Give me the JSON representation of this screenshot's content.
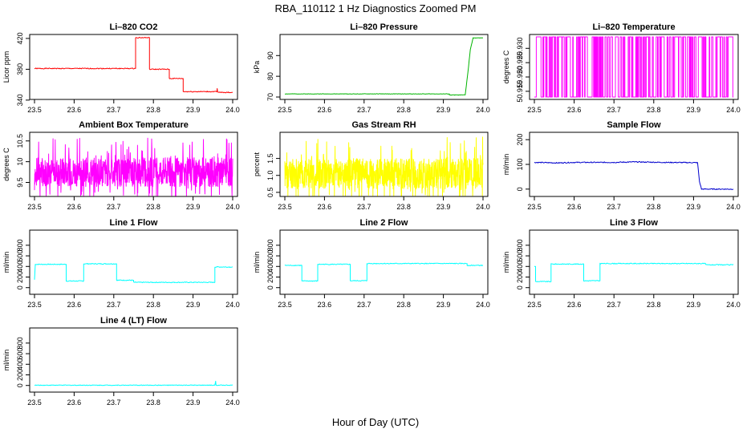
{
  "figure": {
    "title": "RBA_110112  1 Hz Diagnostics Zoomed PM",
    "xlabel": "Hour of Day (UTC)"
  },
  "chart_data": [
    {
      "type": "line",
      "title": "Li–820 CO2",
      "ylabel": "Licor ppm",
      "color": "#ff0000",
      "xlim": [
        23.5,
        24.0
      ],
      "xticks": [
        23.5,
        23.6,
        23.7,
        23.8,
        23.9,
        24.0
      ],
      "xtick_labels": [
        "23.5",
        "23.6",
        "23.7",
        "23.8",
        "23.9",
        "24.0"
      ],
      "yticks": [
        420,
        380,
        340
      ],
      "ytick_labels": [
        "420",
        "380",
        "340"
      ],
      "ylim": [
        344,
        422
      ],
      "series": [
        {
          "x": [
            23.5,
            23.755,
            23.755,
            23.79,
            23.79,
            23.84,
            23.84,
            23.875,
            23.875,
            23.96,
            23.961,
            23.962,
            24.0
          ],
          "y": [
            381,
            381,
            421,
            421,
            380,
            380,
            368,
            368,
            351,
            351,
            355,
            350,
            350
          ]
        }
      ],
      "noise": 0.6
    },
    {
      "type": "line",
      "title": "Li–820 Pressure",
      "ylabel": "kPa",
      "color": "#00b400",
      "xlim": [
        23.5,
        24.0
      ],
      "xticks": [
        23.5,
        23.6,
        23.7,
        23.8,
        23.9,
        24.0
      ],
      "xtick_labels": [
        "23.5",
        "23.6",
        "23.7",
        "23.8",
        "23.9",
        "24.0"
      ],
      "yticks": [
        70,
        80,
        90
      ],
      "ytick_labels": [
        "70",
        "80",
        "90"
      ],
      "ylim": [
        70,
        99
      ],
      "series": [
        {
          "x": [
            23.5,
            23.915,
            23.915,
            23.955,
            23.962,
            23.968,
            23.975,
            24.0
          ],
          "y": [
            71.5,
            71.5,
            71.0,
            71.0,
            82,
            93,
            98.5,
            98.5
          ]
        }
      ],
      "noise": 0.1
    },
    {
      "type": "line",
      "title": "Li–820 Temperature",
      "ylabel": "degrees C",
      "color": "#ff00ff",
      "xlim": [
        23.5,
        24.0
      ],
      "xticks": [
        23.5,
        23.6,
        23.7,
        23.8,
        23.9,
        24.0
      ],
      "xtick_labels": [
        "23.5",
        "23.6",
        "23.7",
        "23.8",
        "23.9",
        "24.0"
      ],
      "yticks": [
        50.915,
        50.92,
        50.925,
        50.93
      ],
      "ytick_labels": [
        "50.915",
        "50.920",
        "50.925",
        "50.930"
      ],
      "ylim": [
        50.913,
        50.934
      ],
      "series": [
        {
          "toggle": [
            50.913,
            50.934
          ],
          "seed": 3
        }
      ]
    },
    {
      "type": "line",
      "title": "Ambient Box Temperature",
      "ylabel": "degrees C",
      "color": "#ff00ff",
      "xlim": [
        23.5,
        24.0
      ],
      "xticks": [
        23.5,
        23.6,
        23.7,
        23.8,
        23.9,
        24.0
      ],
      "xtick_labels": [
        "23.5",
        "23.6",
        "23.7",
        "23.8",
        "23.9",
        "24.0"
      ],
      "yticks": [
        9.5,
        10.0,
        10.5
      ],
      "ytick_labels": [
        "9.5",
        "10",
        "10.5"
      ],
      "ylim": [
        9.22,
        10.65
      ],
      "series": [
        {
          "noise_band": {
            "center": 9.75,
            "half": 0.35,
            "spike": 0.85
          },
          "seed": 7
        }
      ]
    },
    {
      "type": "line",
      "title": "Gas Stream RH",
      "ylabel": "percent",
      "color": "#ffff00",
      "xlim": [
        23.5,
        24.0
      ],
      "xticks": [
        23.5,
        23.6,
        23.7,
        23.8,
        23.9,
        24.0
      ],
      "xtick_labels": [
        "23.5",
        "23.6",
        "23.7",
        "23.8",
        "23.9",
        "24.0"
      ],
      "yticks": [
        0.5,
        1.0,
        1.5
      ],
      "ytick_labels": [
        "0.5",
        "1.0",
        "1.5"
      ],
      "ylim": [
        0.45,
        2.2
      ],
      "series": [
        {
          "noise_band": {
            "center": 1.05,
            "half": 0.45,
            "spike": 1.1
          },
          "seed": 11
        }
      ]
    },
    {
      "type": "line",
      "title": "Sample Flow",
      "ylabel": "ml/min",
      "color": "#0000cd",
      "xlim": [
        23.5,
        24.0
      ],
      "xticks": [
        23.5,
        23.6,
        23.7,
        23.8,
        23.9,
        24.0
      ],
      "xtick_labels": [
        "23.5",
        "23.6",
        "23.7",
        "23.8",
        "23.9",
        "24.0"
      ],
      "yticks": [
        0,
        100,
        200
      ],
      "ytick_labels": [
        "0",
        "100",
        "200"
      ],
      "ylim": [
        -20,
        220
      ],
      "series": [
        {
          "x": [
            23.5,
            23.56,
            23.6,
            23.7,
            23.75,
            23.83,
            23.91,
            23.915,
            23.92,
            24.0
          ],
          "y": [
            108,
            106,
            108,
            108,
            110,
            108,
            107,
            30,
            0,
            0
          ]
        }
      ],
      "noise": 2
    },
    {
      "type": "line",
      "title": "Line 1 Flow",
      "ylabel": "ml/min",
      "color": "#00ffff",
      "xlim": [
        23.5,
        24.0
      ],
      "xticks": [
        23.5,
        23.6,
        23.7,
        23.8,
        23.9,
        24.0
      ],
      "xtick_labels": [
        "23.5",
        "23.6",
        "23.7",
        "23.8",
        "23.9",
        "24.0"
      ],
      "yticks": [
        0,
        200,
        400,
        600,
        800
      ],
      "ytick_labels": [
        "0",
        "200",
        "400",
        "600",
        "800"
      ],
      "ylim": [
        -80,
        1040
      ],
      "series": [
        {
          "x": [
            23.5,
            23.502,
            23.58,
            23.58,
            23.624,
            23.624,
            23.707,
            23.707,
            23.75,
            23.75,
            23.955,
            23.955,
            24.0
          ],
          "y": [
            150,
            440,
            440,
            125,
            125,
            450,
            450,
            140,
            140,
            100,
            100,
            390,
            390
          ]
        }
      ],
      "noise": 8
    },
    {
      "type": "line",
      "title": "Line 2 Flow",
      "ylabel": "ml/min",
      "color": "#00ffff",
      "xlim": [
        23.5,
        24.0
      ],
      "xticks": [
        23.5,
        23.6,
        23.7,
        23.8,
        23.9,
        24.0
      ],
      "xtick_labels": [
        "23.5",
        "23.6",
        "23.7",
        "23.8",
        "23.9",
        "24.0"
      ],
      "yticks": [
        0,
        200,
        400,
        600,
        800
      ],
      "ytick_labels": [
        "0",
        "200",
        "400",
        "600",
        "800"
      ],
      "ylim": [
        -80,
        1040
      ],
      "series": [
        {
          "x": [
            23.5,
            23.543,
            23.543,
            23.583,
            23.583,
            23.665,
            23.665,
            23.707,
            23.707,
            23.96,
            23.96,
            24.0
          ],
          "y": [
            420,
            420,
            125,
            125,
            440,
            440,
            130,
            130,
            455,
            455,
            420,
            420
          ]
        }
      ],
      "noise": 8
    },
    {
      "type": "line",
      "title": "Line 3 Flow",
      "ylabel": "ml/min",
      "color": "#00ffff",
      "xlim": [
        23.5,
        24.0
      ],
      "xticks": [
        23.5,
        23.6,
        23.7,
        23.8,
        23.9,
        24.0
      ],
      "xtick_labels": [
        "23.5",
        "23.6",
        "23.7",
        "23.8",
        "23.9",
        "24.0"
      ],
      "yticks": [
        0,
        200,
        400,
        600,
        800
      ],
      "ytick_labels": [
        "0",
        "200",
        "400",
        "600",
        "800"
      ],
      "ylim": [
        -80,
        1040
      ],
      "series": [
        {
          "x": [
            23.5,
            23.503,
            23.503,
            23.542,
            23.542,
            23.624,
            23.624,
            23.665,
            23.665,
            23.93,
            23.93,
            24.0
          ],
          "y": [
            400,
            400,
            115,
            115,
            445,
            445,
            130,
            130,
            455,
            455,
            430,
            430
          ]
        }
      ],
      "noise": 8
    },
    {
      "type": "line",
      "title": "Line 4 (LT) Flow",
      "ylabel": "ml/min",
      "color": "#00ffff",
      "xlim": [
        23.5,
        24.0
      ],
      "xticks": [
        23.5,
        23.6,
        23.7,
        23.8,
        23.9,
        24.0
      ],
      "xtick_labels": [
        "23.5",
        "23.6",
        "23.7",
        "23.8",
        "23.9",
        "24.0"
      ],
      "yticks": [
        0,
        200,
        400,
        600,
        800
      ],
      "ytick_labels": [
        "0",
        "200",
        "400",
        "600",
        "800"
      ],
      "ylim": [
        -80,
        1040
      ],
      "series": [
        {
          "x": [
            23.5,
            23.955,
            23.957,
            23.958,
            23.96,
            24.0
          ],
          "y": [
            5,
            5,
            80,
            5,
            5,
            5
          ]
        }
      ],
      "noise": 6
    }
  ]
}
